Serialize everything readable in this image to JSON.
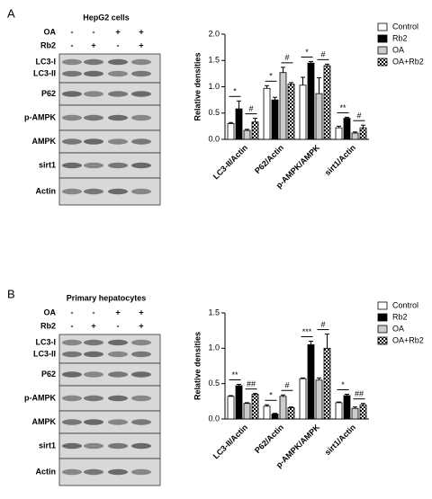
{
  "blots": [
    {
      "label": "A",
      "title": "HepG2 cells",
      "treatments": [
        {
          "name": "OA",
          "signs": [
            "-",
            "-",
            "+",
            "+"
          ]
        },
        {
          "name": "Rb2",
          "signs": [
            "-",
            "+",
            "-",
            "+"
          ]
        }
      ],
      "bands": [
        "LC3-I",
        "LC3-II",
        "P62",
        "p-AMPK",
        "AMPK",
        "sirt1",
        "Actin"
      ]
    },
    {
      "label": "B",
      "title": "Primary hepatocytes",
      "treatments": [
        {
          "name": "OA",
          "signs": [
            "-",
            "-",
            "+",
            "+"
          ]
        },
        {
          "name": "Rb2",
          "signs": [
            "-",
            "+",
            "-",
            "+"
          ]
        }
      ],
      "bands": [
        "LC3-I",
        "LC3-II",
        "P62",
        "p-AMPK",
        "AMPK",
        "sirt1",
        "Actin"
      ]
    }
  ],
  "chart_data": [
    {
      "type": "bar",
      "y_label": "Relative densities",
      "categories": [
        "LC3-II/Actin",
        "P62/Actin",
        "p-AMPK/AMPK",
        "sirt1/Actin"
      ],
      "series": [
        {
          "name": "Control",
          "color": "#ffffff",
          "values": [
            0.3,
            0.97,
            1.03,
            0.22
          ],
          "errors": [
            0.02,
            0.05,
            0.15,
            0.03
          ]
        },
        {
          "name": "Rb2",
          "color": "#000000",
          "values": [
            0.58,
            0.75,
            1.45,
            0.4
          ],
          "errors": [
            0.15,
            0.05,
            0.03,
            0.02
          ]
        },
        {
          "name": "OA",
          "color": "#cccccc",
          "values": [
            0.17,
            1.27,
            0.87,
            0.12
          ],
          "errors": [
            0.02,
            0.1,
            0.3,
            0.02
          ]
        },
        {
          "name": "OA+Rb2",
          "color": "#000000",
          "pattern": "checker",
          "values": [
            0.33,
            1.05,
            1.4,
            0.22
          ],
          "errors": [
            0.07,
            0.03,
            0.03,
            0.05
          ]
        }
      ],
      "annotations": [
        [
          "*",
          "#"
        ],
        [
          "*",
          "#"
        ],
        [
          "*",
          "#"
        ],
        [
          "**",
          "#"
        ]
      ],
      "ylim": [
        0,
        2
      ],
      "yticks": [
        {
          "value": 0,
          "label": "0.0"
        },
        0.5,
        {
          "value": 1,
          "label": "1.0"
        },
        1.5,
        {
          "value": 2,
          "label": "2.0"
        }
      ],
      "legend": "upper right"
    },
    {
      "type": "bar",
      "y_label": "Relative densities",
      "categories": [
        "LC3-II/Actin",
        "P62/Actin",
        "p-AMPK/AMPK",
        "sirt1/Actin"
      ],
      "series": [
        {
          "name": "Control",
          "color": "#ffffff",
          "values": [
            0.32,
            0.18,
            0.57,
            0.23
          ],
          "errors": [
            0.01,
            0.02,
            0.01,
            0.01
          ]
        },
        {
          "name": "Rb2",
          "color": "#000000",
          "values": [
            0.47,
            0.07,
            1.05,
            0.33
          ],
          "errors": [
            0.02,
            0.01,
            0.05,
            0.02
          ]
        },
        {
          "name": "OA",
          "color": "#cccccc",
          "values": [
            0.22,
            0.32,
            0.55,
            0.15
          ],
          "errors": [
            0.01,
            0.02,
            0.03,
            0.02
          ]
        },
        {
          "name": "OA+Rb2",
          "color": "#000000",
          "pattern": "checker",
          "values": [
            0.35,
            0.16,
            1.0,
            0.2
          ],
          "errors": [
            0.01,
            0.01,
            0.2,
            0.02
          ]
        }
      ],
      "annotations": [
        [
          "**",
          "##"
        ],
        [
          "*",
          "#"
        ],
        [
          "***",
          "#"
        ],
        [
          "*",
          "##"
        ]
      ],
      "ylim": [
        0,
        1.5
      ],
      "yticks": [
        {
          "value": 0,
          "label": "0.0"
        },
        0.5,
        {
          "value": 1,
          "label": "1.0"
        },
        1.5
      ],
      "legend": "upper right"
    }
  ]
}
